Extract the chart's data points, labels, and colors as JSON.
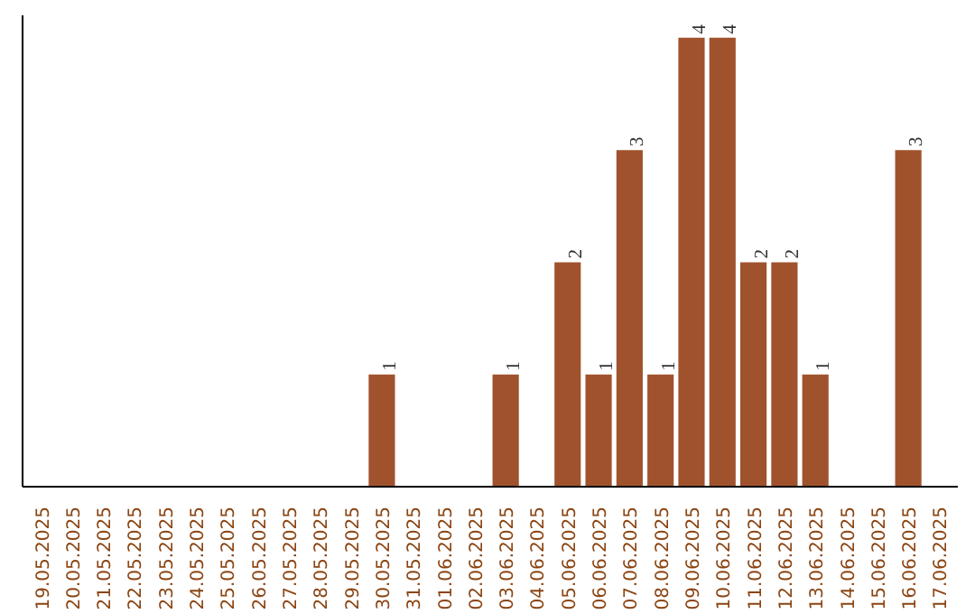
{
  "chart_data": {
    "type": "bar",
    "categories": [
      "19.05.2025",
      "20.05.2025",
      "21.05.2025",
      "22.05.2025",
      "23.05.2025",
      "24.05.2025",
      "25.05.2025",
      "26.05.2025",
      "27.05.2025",
      "28.05.2025",
      "29.05.2025",
      "30.05.2025",
      "31.05.2025",
      "01.06.2025",
      "02.06.2025",
      "03.06.2025",
      "04.06.2025",
      "05.06.2025",
      "06.06.2025",
      "07.06.2025",
      "08.06.2025",
      "09.06.2025",
      "10.06.2025",
      "11.06.2025",
      "12.06.2025",
      "13.06.2025",
      "14.06.2025",
      "15.06.2025",
      "16.06.2025",
      "17.06.2025"
    ],
    "values": [
      0,
      0,
      0,
      0,
      0,
      0,
      0,
      0,
      0,
      0,
      0,
      1,
      0,
      0,
      0,
      1,
      0,
      2,
      1,
      3,
      1,
      4,
      4,
      2,
      2,
      1,
      0,
      0,
      3,
      0
    ],
    "value_labels": [
      null,
      null,
      null,
      null,
      null,
      null,
      null,
      null,
      null,
      null,
      null,
      "1",
      null,
      null,
      null,
      "1",
      null,
      "2",
      "1",
      "3",
      "1",
      "4",
      "4",
      "2",
      "2",
      "1",
      null,
      null,
      "3",
      null
    ],
    "color": "#a0522d",
    "ylim": [
      0,
      4.2
    ],
    "tick_labels": "x"
  }
}
